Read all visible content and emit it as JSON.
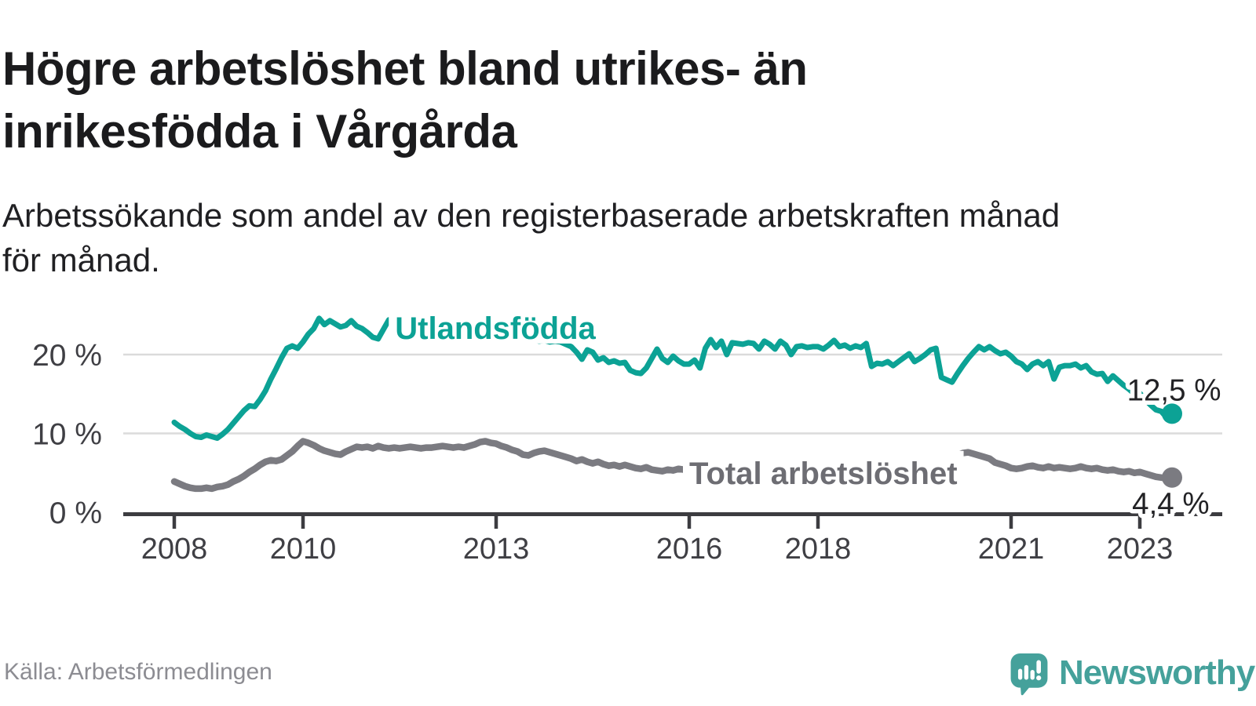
{
  "header": {
    "title_lines": [
      "Högre arbetslöshet bland utrikes- än",
      "inrikesfödda i Vårgårda"
    ],
    "subtitle_lines": [
      "Arbetssökande som andel av den registerbaserade arbetskraften månad",
      "för månad."
    ]
  },
  "footer": {
    "source": "Källa: Arbetsförmedlingen",
    "brand_name": "Newsworthy"
  },
  "colors": {
    "foreign_born_line": "#0ca295",
    "total_line": "#7b7b81",
    "total_label": "#6d6d73",
    "axis_line": "#3c3c40",
    "axis_text": "#3f3f44",
    "gridline": "#dbdbdb",
    "end_label_text": "#222225",
    "title_text": "#1b1b1d",
    "brand_teal": "#45a19b",
    "background": "#ffffff"
  },
  "chart_data": {
    "type": "line",
    "title": "Högre arbetslöshet bland utrikes- än inrikesfödda i Vårgårda",
    "subtitle": "Arbetssökande som andel av den registerbaserade arbetskraften månad för månad.",
    "frequency": "monthly",
    "x_start_year": 2008.0,
    "x_end_year": 2023.5,
    "ylim": [
      0,
      26
    ],
    "grid": "horizontal",
    "legend": "inline-labels",
    "x_ticks": [
      {
        "year": 2008,
        "label": "2008"
      },
      {
        "year": 2010,
        "label": "2010"
      },
      {
        "year": 2013,
        "label": "2013"
      },
      {
        "year": 2016,
        "label": "2016"
      },
      {
        "year": 2018,
        "label": "2018"
      },
      {
        "year": 2021,
        "label": "2021"
      },
      {
        "year": 2023,
        "label": "2023"
      }
    ],
    "y_ticks": [
      {
        "value": 0,
        "label": "0 %"
      },
      {
        "value": 10,
        "label": "10 %"
      },
      {
        "value": 20,
        "label": "20 %"
      }
    ],
    "series": [
      {
        "id": "total",
        "name": "Total arbetslöshet",
        "color": "#7b7b81",
        "label_color": "#6d6d73",
        "line_width": 8.5,
        "end_label": "4,4 %",
        "last_value": 4.4,
        "label_pos": {
          "x_year": 2016.0,
          "y_pct": 3.6
        },
        "end_label_pos": {
          "x_year": 2022.88,
          "y_pct": -0.2
        },
        "values": [
          3.9,
          3.6,
          3.3,
          3.1,
          3.0,
          3.0,
          3.1,
          3.0,
          3.2,
          3.3,
          3.5,
          3.9,
          4.2,
          4.6,
          5.1,
          5.5,
          6.0,
          6.4,
          6.6,
          6.5,
          6.7,
          7.2,
          7.7,
          8.4,
          9.0,
          8.8,
          8.5,
          8.1,
          7.8,
          7.6,
          7.4,
          7.3,
          7.7,
          8.0,
          8.3,
          8.2,
          8.3,
          8.1,
          8.4,
          8.2,
          8.1,
          8.2,
          8.1,
          8.2,
          8.3,
          8.2,
          8.1,
          8.2,
          8.2,
          8.3,
          8.4,
          8.3,
          8.2,
          8.3,
          8.2,
          8.4,
          8.6,
          8.9,
          9.0,
          8.8,
          8.7,
          8.4,
          8.2,
          7.9,
          7.7,
          7.3,
          7.2,
          7.5,
          7.7,
          7.8,
          7.6,
          7.4,
          7.2,
          7.0,
          6.8,
          6.5,
          6.7,
          6.4,
          6.2,
          6.4,
          6.1,
          5.9,
          6.0,
          5.8,
          6.0,
          5.8,
          5.6,
          5.5,
          5.7,
          5.4,
          5.3,
          5.2,
          5.4,
          5.3,
          5.5,
          5.4,
          5.3,
          5.2,
          5.1,
          5.2,
          5.1,
          5.0,
          5.1,
          5.0,
          5.1,
          5.2,
          5.1,
          5.2,
          5.1,
          5.2,
          5.3,
          5.2,
          5.3,
          5.2,
          5.3,
          5.4,
          5.3,
          5.4,
          5.3,
          5.4,
          5.3,
          5.4,
          5.5,
          5.4,
          5.5,
          5.4,
          5.5,
          5.6,
          5.5,
          5.6,
          5.5,
          5.6,
          5.5,
          5.6,
          5.7,
          5.6,
          5.7,
          5.8,
          5.7,
          5.8,
          5.9,
          6.0,
          6.1,
          6.2,
          6.5,
          6.8,
          7.2,
          7.5,
          7.6,
          7.4,
          7.2,
          7.0,
          6.8,
          6.3,
          6.1,
          5.9,
          5.6,
          5.5,
          5.6,
          5.8,
          5.9,
          5.7,
          5.6,
          5.8,
          5.6,
          5.7,
          5.6,
          5.5,
          5.6,
          5.8,
          5.6,
          5.5,
          5.6,
          5.4,
          5.3,
          5.4,
          5.2,
          5.1,
          5.2,
          5.0,
          5.1,
          4.9,
          4.7,
          4.5,
          4.4,
          4.3,
          4.4
        ]
      },
      {
        "id": "utlandsfodda",
        "name": "Utlandsfödda",
        "color": "#0ca295",
        "label_color": "#0ca295",
        "line_width": 7,
        "end_label": "12,5 %",
        "last_value": 12.5,
        "label_pos": {
          "x_year": 2011.43,
          "y_pct": 22.0
        },
        "end_label_pos": {
          "x_year": 2022.8,
          "y_pct": 14.2
        },
        "values": [
          11.4,
          10.9,
          10.5,
          10.0,
          9.6,
          9.5,
          9.8,
          9.6,
          9.4,
          9.9,
          10.5,
          11.3,
          12.1,
          12.9,
          13.5,
          13.4,
          14.3,
          15.4,
          16.9,
          18.2,
          19.6,
          20.8,
          21.1,
          20.8,
          21.6,
          22.6,
          23.3,
          24.6,
          23.8,
          24.3,
          23.9,
          23.5,
          23.7,
          24.3,
          23.6,
          23.3,
          22.8,
          22.2,
          22.0,
          23.2,
          24.4,
          23.9,
          23.6,
          23.4,
          23.5,
          23.2,
          23.0,
          23.1,
          23.0,
          22.8,
          22.9,
          22.7,
          22.6,
          22.7,
          22.5,
          22.4,
          22.5,
          22.3,
          22.2,
          22.3,
          22.2,
          22.1,
          22.2,
          22.0,
          21.9,
          22.0,
          21.8,
          21.9,
          21.7,
          21.8,
          21.6,
          21.7,
          21.6,
          21.3,
          21.0,
          20.3,
          19.4,
          20.6,
          20.3,
          19.3,
          19.6,
          19.0,
          19.2,
          18.9,
          19.0,
          18.0,
          17.7,
          17.6,
          18.3,
          19.5,
          20.7,
          19.5,
          19.0,
          19.8,
          19.2,
          18.8,
          18.8,
          19.3,
          18.3,
          20.8,
          21.9,
          20.9,
          21.7,
          20.0,
          21.5,
          21.4,
          21.3,
          21.5,
          21.4,
          20.7,
          21.7,
          21.3,
          20.7,
          21.7,
          21.2,
          20.0,
          21.0,
          21.1,
          20.9,
          21.0,
          21.0,
          20.7,
          21.2,
          21.8,
          21.0,
          21.2,
          20.8,
          21.1,
          20.9,
          21.4,
          18.5,
          18.9,
          18.8,
          19.1,
          18.6,
          19.1,
          19.6,
          20.1,
          19.1,
          19.5,
          20.0,
          20.6,
          20.8,
          17.1,
          16.8,
          16.5,
          17.6,
          18.6,
          19.5,
          20.3,
          21.0,
          20.6,
          21.0,
          20.5,
          20.1,
          20.3,
          19.8,
          19.1,
          18.8,
          18.1,
          18.8,
          19.1,
          18.6,
          19.1,
          16.9,
          18.4,
          18.6,
          18.6,
          18.8,
          18.3,
          18.6,
          17.8,
          17.5,
          17.6,
          16.6,
          17.3,
          16.7,
          16.1,
          15.6,
          15.0,
          15.1,
          14.3,
          13.6,
          13.0,
          12.8,
          12.0,
          12.5
        ]
      }
    ]
  }
}
